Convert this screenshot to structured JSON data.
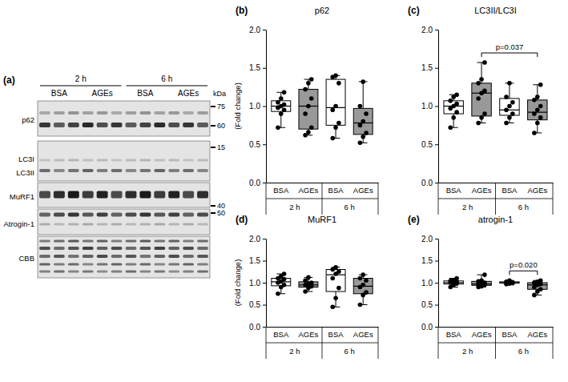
{
  "blot": {
    "label": "(a)",
    "groups": [
      "2 h",
      "6 h"
    ],
    "conditions": [
      "BSA",
      "AGEs",
      "BSA",
      "AGEs"
    ],
    "unit": "kDa",
    "rows": [
      {
        "labels": [
          "p62"
        ],
        "markers": [
          75,
          60
        ]
      },
      {
        "labels": [
          "LC3I",
          "LC3II"
        ],
        "markers": [
          15
        ]
      },
      {
        "labels": [
          "MuRF1"
        ],
        "markers": [
          40
        ]
      },
      {
        "labels": [
          "Atrogin-1"
        ],
        "markers": [
          50
        ]
      },
      {
        "labels": [
          "CBB"
        ],
        "markers": []
      }
    ]
  },
  "chart_data": [
    {
      "type": "box",
      "panel": "(b)",
      "title": "p62",
      "y_label": "(Fold change)",
      "categories": [
        "BSA",
        "AGEs",
        "BSA",
        "AGEs"
      ],
      "group_labels": [
        "2 h",
        "6 h"
      ],
      "colors": [
        "#ffffff",
        "#999999",
        "#ffffff",
        "#999999"
      ],
      "ylim": [
        0,
        2
      ],
      "yticks": [
        {
          "value": 0,
          "label": "0.0"
        },
        {
          "value": 0.5,
          "label": "0.5"
        },
        {
          "value": 1,
          "label": "1.0"
        },
        {
          "value": 1.5,
          "label": "1.5"
        },
        {
          "value": 2,
          "label": "2.0"
        }
      ],
      "boxes": [
        {
          "min": 0.72,
          "q1": 0.93,
          "median": 1.0,
          "q3": 1.07,
          "max": 1.18,
          "points": [
            0.72,
            0.9,
            0.95,
            0.98,
            1.0,
            1.02,
            1.05,
            1.1,
            1.18
          ]
        },
        {
          "min": 0.62,
          "q1": 0.7,
          "median": 1.0,
          "q3": 1.22,
          "max": 1.35,
          "points": [
            0.62,
            0.66,
            0.72,
            0.9,
            1.0,
            1.1,
            1.22,
            1.3,
            1.35
          ]
        },
        {
          "min": 0.58,
          "q1": 0.75,
          "median": 0.98,
          "q3": 1.35,
          "max": 1.4,
          "points": [
            0.58,
            0.72,
            0.78,
            0.95,
            1.0,
            1.3,
            1.38,
            1.4
          ]
        },
        {
          "min": 0.52,
          "q1": 0.63,
          "median": 0.78,
          "q3": 0.97,
          "max": 1.32,
          "points": [
            0.52,
            0.6,
            0.65,
            0.75,
            0.8,
            0.9,
            1.0,
            1.32
          ]
        }
      ]
    },
    {
      "type": "box",
      "panel": "(c)",
      "title": "LC3II/LC3I",
      "categories": [
        "BSA",
        "AGEs",
        "BSA",
        "AGEs"
      ],
      "group_labels": [
        "2 h",
        "6 h"
      ],
      "colors": [
        "#ffffff",
        "#999999",
        "#ffffff",
        "#999999"
      ],
      "ylim": [
        0,
        2
      ],
      "yticks": [
        {
          "value": 0,
          "label": "0.0"
        },
        {
          "value": 0.5,
          "label": "0.5"
        },
        {
          "value": 1,
          "label": "1.0"
        },
        {
          "value": 1.5,
          "label": "1.5"
        },
        {
          "value": 2,
          "label": "2.0"
        }
      ],
      "boxes": [
        {
          "min": 0.72,
          "q1": 0.9,
          "median": 1.0,
          "q3": 1.07,
          "max": 1.15,
          "points": [
            0.72,
            0.85,
            0.92,
            0.97,
            1.0,
            1.03,
            1.07,
            1.12,
            1.15
          ]
        },
        {
          "min": 0.78,
          "q1": 0.87,
          "median": 1.17,
          "q3": 1.3,
          "max": 1.57,
          "points": [
            0.78,
            0.85,
            0.9,
            1.1,
            1.17,
            1.2,
            1.3,
            1.35,
            1.57
          ]
        },
        {
          "min": 0.78,
          "q1": 0.88,
          "median": 0.95,
          "q3": 1.1,
          "max": 1.3,
          "points": [
            0.78,
            0.85,
            0.9,
            0.95,
            1.0,
            1.05,
            1.12,
            1.3
          ]
        },
        {
          "min": 0.65,
          "q1": 0.82,
          "median": 0.92,
          "q3": 1.08,
          "max": 1.28,
          "points": [
            0.65,
            0.78,
            0.85,
            0.9,
            0.95,
            1.0,
            1.08,
            1.12,
            1.28
          ]
        }
      ],
      "annotations": [
        {
          "text": "p=0.037",
          "between": [
            1,
            3
          ]
        }
      ]
    },
    {
      "type": "box",
      "panel": "(d)",
      "title": "MuRF1",
      "y_label": "(Fold change)",
      "categories": [
        "BSA",
        "AGEs",
        "BSA",
        "AGEs"
      ],
      "group_labels": [
        "2 h",
        "6 h"
      ],
      "colors": [
        "#ffffff",
        "#999999",
        "#ffffff",
        "#999999"
      ],
      "ylim": [
        0,
        2
      ],
      "yticks": [
        {
          "value": 0,
          "label": "0.0"
        },
        {
          "value": 0.5,
          "label": "0.5"
        },
        {
          "value": 1,
          "label": "1.0"
        },
        {
          "value": 1.5,
          "label": "1.5"
        },
        {
          "value": 2,
          "label": "2.0"
        }
      ],
      "boxes": [
        {
          "min": 0.75,
          "q1": 0.93,
          "median": 1.02,
          "q3": 1.1,
          "max": 1.2,
          "points": [
            0.75,
            0.9,
            0.95,
            1.0,
            1.03,
            1.08,
            1.1,
            1.15,
            1.2
          ]
        },
        {
          "min": 0.8,
          "q1": 0.9,
          "median": 0.95,
          "q3": 1.02,
          "max": 1.12,
          "points": [
            0.8,
            0.88,
            0.92,
            0.95,
            0.97,
            1.0,
            1.05,
            1.12
          ]
        },
        {
          "min": 0.45,
          "q1": 0.8,
          "median": 1.18,
          "q3": 1.3,
          "max": 1.35,
          "points": [
            0.45,
            0.65,
            0.88,
            1.1,
            1.2,
            1.25,
            1.3,
            1.35
          ]
        },
        {
          "min": 0.5,
          "q1": 0.75,
          "median": 0.92,
          "q3": 1.1,
          "max": 1.18,
          "points": [
            0.5,
            0.72,
            0.78,
            0.9,
            0.95,
            1.05,
            1.1,
            1.18
          ]
        }
      ]
    },
    {
      "type": "box",
      "panel": "(e)",
      "title": "atrogin-1",
      "categories": [
        "BSA",
        "AGEs",
        "BSA",
        "AGEs"
      ],
      "group_labels": [
        "2 h",
        "6 h"
      ],
      "colors": [
        "#ffffff",
        "#999999",
        "#ffffff",
        "#999999"
      ],
      "ylim": [
        0,
        2
      ],
      "yticks": [
        {
          "value": 0,
          "label": "0.0"
        },
        {
          "value": 0.5,
          "label": "0.5"
        },
        {
          "value": 1,
          "label": "1.0"
        },
        {
          "value": 1.5,
          "label": "1.5"
        },
        {
          "value": 2,
          "label": "2.0"
        }
      ],
      "boxes": [
        {
          "min": 0.9,
          "q1": 0.97,
          "median": 1.0,
          "q3": 1.04,
          "max": 1.1,
          "points": [
            0.9,
            0.95,
            0.98,
            1.0,
            1.0,
            1.02,
            1.04,
            1.06,
            1.1
          ]
        },
        {
          "min": 0.9,
          "q1": 0.94,
          "median": 0.97,
          "q3": 1.03,
          "max": 1.18,
          "points": [
            0.9,
            0.92,
            0.95,
            0.97,
            0.98,
            1.0,
            1.03,
            1.05,
            1.18
          ]
        },
        {
          "min": 0.97,
          "q1": 0.99,
          "median": 1.0,
          "q3": 1.02,
          "max": 1.05,
          "points": [
            0.97,
            0.98,
            0.99,
            1.0,
            1.0,
            1.01,
            1.02,
            1.05
          ]
        },
        {
          "min": 0.72,
          "q1": 0.85,
          "median": 0.95,
          "q3": 1.0,
          "max": 1.05,
          "points": [
            0.72,
            0.8,
            0.85,
            0.9,
            0.95,
            0.97,
            1.0,
            1.02,
            1.05
          ]
        }
      ],
      "annotations": [
        {
          "text": "p=0.020",
          "between": [
            2,
            3
          ]
        }
      ]
    }
  ]
}
